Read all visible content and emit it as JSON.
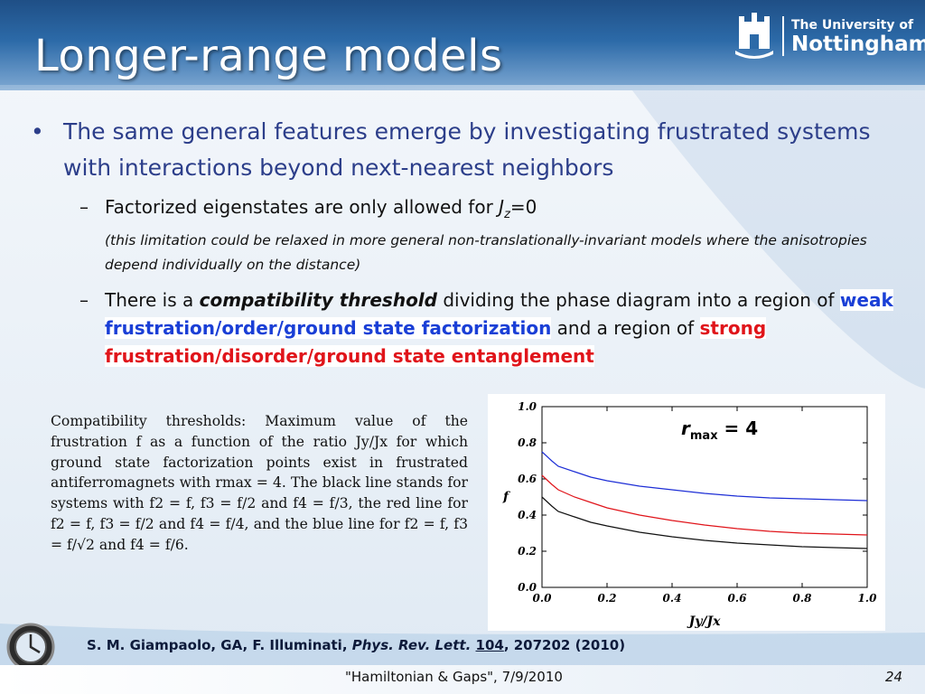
{
  "slide": {
    "title": "Longer-range models",
    "logo": {
      "line1": "The University of",
      "line2": "Nottingham"
    },
    "bullet": "The same general features emerge by investigating frustrated systems with interactions beyond next-nearest neighbors",
    "sub1": {
      "text_pre": "Factorized eigenstates are only allowed for ",
      "var": "J",
      "var_sub": "z",
      "text_post": "=0",
      "note": "(this limitation could be relaxed in more general non-translationally-invariant models where the anisotropies depend individually on the distance)"
    },
    "sub2": {
      "t1": "There is a ",
      "em": "compatibility threshold",
      "t2": " dividing the phase diagram into a region of ",
      "blue": "weak frustration/order/ground state factorization",
      "t3": " and a region of ",
      "red": "strong frustration/disorder/ground state entanglement"
    },
    "caption": "Compatibility thresholds: Maximum value of the frustration f as a function of the ratio Jy/Jx for which ground state factorization points exist in frustrated antiferromagnets with rmax = 4. The black line stands for systems with f2 = f, f3 = f/2 and f4 = f/3, the red line for f2 = f, f3 = f/2 and f4 = f/4, and the blue line for f2 = f, f3 = f/√2 and f4 = f/6.",
    "rmax_label": {
      "r": "r",
      "sub": "max",
      "value": " = 4"
    },
    "reference": {
      "authors": "S. M. Giampaolo, GA, F. Illuminati, ",
      "journal": "Phys. Rev. Lett.",
      "volume": "104",
      "rest": ", 207202 (2010)"
    },
    "footer": "\"Hamiltonian &  Gaps\", 7/9/2010",
    "page": "24"
  },
  "chart_data": {
    "type": "line",
    "xlabel": "Jy/Jx",
    "ylabel": "f",
    "xlim": [
      0.0,
      1.0
    ],
    "ylim": [
      0.0,
      1.0
    ],
    "xticks": [
      "0.0",
      "0.2",
      "0.4",
      "0.6",
      "0.8",
      "1.0"
    ],
    "yticks": [
      "0.0",
      "0.2",
      "0.4",
      "0.6",
      "0.8",
      "1.0"
    ],
    "x": [
      0.0,
      0.03,
      0.05,
      0.1,
      0.15,
      0.2,
      0.3,
      0.4,
      0.5,
      0.6,
      0.7,
      0.8,
      0.9,
      1.0
    ],
    "series": [
      {
        "color": "#1e2fd6",
        "values": [
          0.75,
          0.7,
          0.67,
          0.64,
          0.61,
          0.59,
          0.56,
          0.54,
          0.52,
          0.505,
          0.495,
          0.49,
          0.485,
          0.48
        ]
      },
      {
        "color": "#e0141a",
        "values": [
          0.62,
          0.57,
          0.54,
          0.5,
          0.47,
          0.44,
          0.4,
          0.37,
          0.345,
          0.325,
          0.31,
          0.3,
          0.295,
          0.29
        ]
      },
      {
        "color": "#111111",
        "values": [
          0.5,
          0.45,
          0.42,
          0.39,
          0.36,
          0.34,
          0.305,
          0.28,
          0.26,
          0.245,
          0.235,
          0.225,
          0.22,
          0.215
        ]
      }
    ],
    "grid": false
  }
}
